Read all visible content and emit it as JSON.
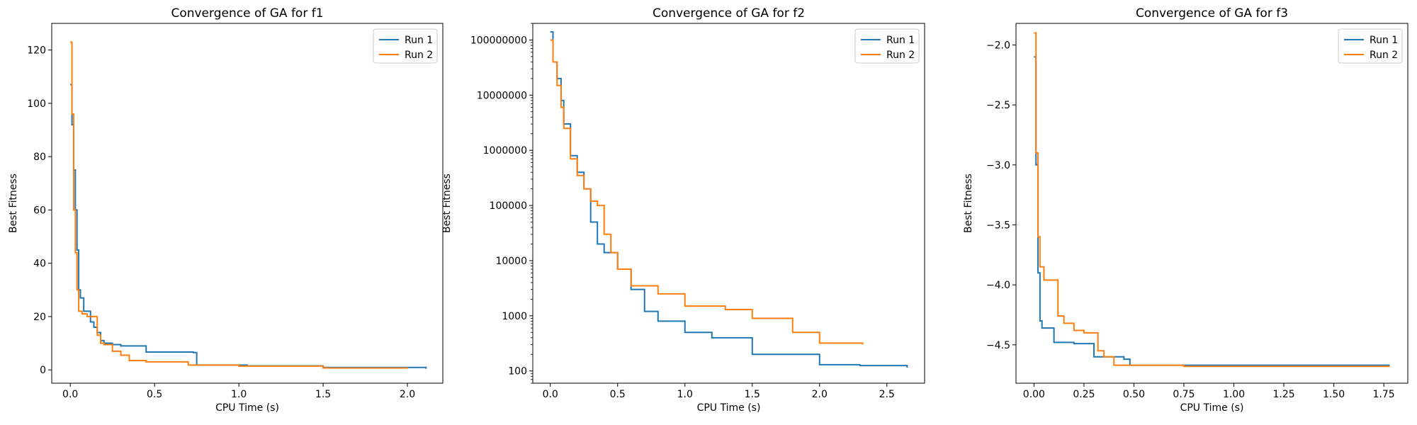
{
  "chart_data": [
    {
      "type": "line",
      "title": "Convergence of GA for f1",
      "xlabel": "CPU Time (s)",
      "ylabel": "Best Fitness",
      "xlim": [
        -0.11,
        2.21
      ],
      "ylim": [
        -5,
        130
      ],
      "yscale": "linear",
      "xticks": [
        0.0,
        0.5,
        1.0,
        1.5,
        2.0
      ],
      "xtick_labels": [
        "0.0",
        "0.5",
        "1.0",
        "1.5",
        "2.0"
      ],
      "yticks": [
        0,
        20,
        40,
        60,
        80,
        100,
        120
      ],
      "ytick_labels": [
        "0",
        "20",
        "40",
        "60",
        "80",
        "100",
        "120"
      ],
      "legend": {
        "loc": "upper right",
        "entries": [
          "Run 1",
          "Run 2"
        ]
      },
      "grid": false,
      "series": [
        {
          "name": "Run 1",
          "color": "#1f77b4",
          "x": [
            0.0,
            0.01,
            0.02,
            0.03,
            0.04,
            0.05,
            0.06,
            0.08,
            0.1,
            0.12,
            0.14,
            0.16,
            0.18,
            0.2,
            0.25,
            0.3,
            0.35,
            0.45,
            0.6,
            0.73,
            0.75,
            1.05,
            1.5,
            2.11
          ],
          "y": [
            107,
            92,
            75,
            60,
            45,
            30,
            27,
            22,
            22,
            18,
            16,
            14,
            11,
            10,
            9.5,
            9,
            9,
            6.7,
            6.7,
            6.5,
            1.8,
            1.5,
            0.9,
            0.4
          ]
        },
        {
          "name": "Run 2",
          "color": "#ff7f0e",
          "x": [
            0.0,
            0.01,
            0.02,
            0.03,
            0.04,
            0.05,
            0.07,
            0.1,
            0.14,
            0.16,
            0.18,
            0.2,
            0.25,
            0.3,
            0.35,
            0.45,
            0.7,
            1.0,
            1.5,
            2.0
          ],
          "y": [
            123,
            96,
            60,
            44,
            30,
            22,
            21,
            20,
            20,
            13,
            10,
            9.5,
            7,
            5.5,
            3.5,
            3,
            1.8,
            1.4,
            0.7,
            0.5
          ]
        }
      ]
    },
    {
      "type": "line",
      "title": "Convergence of GA for f2",
      "xlabel": "CPU Time (s)",
      "ylabel": "Best Fitness",
      "xlim": [
        -0.13,
        2.78
      ],
      "ylim": [
        60,
        200000000
      ],
      "yscale": "log",
      "xticks": [
        0.0,
        0.5,
        1.0,
        1.5,
        2.0,
        2.5
      ],
      "xtick_labels": [
        "0.0",
        "0.5",
        "1.0",
        "1.5",
        "2.0",
        "2.5"
      ],
      "yticks": [
        100,
        1000,
        10000,
        100000,
        1000000,
        10000000,
        100000000
      ],
      "ytick_labels": [
        "100",
        "1000",
        "10000",
        "100000",
        "1000000",
        "10000000",
        "100000000"
      ],
      "legend": {
        "loc": "upper right",
        "entries": [
          "Run 1",
          "Run 2"
        ]
      },
      "grid": false,
      "series": [
        {
          "name": "Run 1",
          "color": "#1f77b4",
          "x": [
            0.0,
            0.02,
            0.05,
            0.08,
            0.1,
            0.15,
            0.2,
            0.25,
            0.3,
            0.35,
            0.4,
            0.5,
            0.6,
            0.7,
            0.8,
            1.0,
            1.2,
            1.5,
            2.0,
            2.3,
            2.65
          ],
          "y": [
            140000000,
            40000000,
            20000000,
            8000000,
            3000000,
            800000,
            400000,
            200000,
            50000,
            20000,
            14000,
            7000,
            3000,
            1200,
            800,
            500,
            400,
            200,
            130,
            125,
            115
          ]
        },
        {
          "name": "Run 2",
          "color": "#ff7f0e",
          "x": [
            0.0,
            0.02,
            0.05,
            0.08,
            0.1,
            0.15,
            0.2,
            0.25,
            0.3,
            0.35,
            0.4,
            0.45,
            0.5,
            0.6,
            0.8,
            1.0,
            1.3,
            1.5,
            1.8,
            2.0,
            2.32
          ],
          "y": [
            100000000,
            40000000,
            15000000,
            6000000,
            2500000,
            700000,
            350000,
            200000,
            120000,
            100000,
            30000,
            14000,
            7000,
            3500,
            2500,
            1500,
            1300,
            900,
            500,
            320,
            300
          ]
        }
      ]
    },
    {
      "type": "line",
      "title": "Convergence of GA for f3",
      "xlabel": "CPU Time (s)",
      "ylabel": "Best Fitness",
      "xlim": [
        -0.09,
        1.87
      ],
      "ylim": [
        -4.82,
        -1.82
      ],
      "yscale": "linear",
      "xticks": [
        0.0,
        0.25,
        0.5,
        0.75,
        1.0,
        1.25,
        1.5,
        1.75
      ],
      "xtick_labels": [
        "0.00",
        "0.25",
        "0.50",
        "0.75",
        "1.00",
        "1.25",
        "1.50",
        "1.75"
      ],
      "yticks": [
        -4.5,
        -4.0,
        -3.5,
        -3.0,
        -2.5,
        -2.0
      ],
      "ytick_labels": [
        "−4.5",
        "−4.0",
        "−3.5",
        "−3.0",
        "−2.5",
        "−2.0"
      ],
      "legend": {
        "loc": "upper right",
        "entries": [
          "Run 1",
          "Run 2"
        ]
      },
      "grid": false,
      "series": [
        {
          "name": "Run 1",
          "color": "#1f77b4",
          "x": [
            0.0,
            0.01,
            0.02,
            0.03,
            0.04,
            0.1,
            0.2,
            0.3,
            0.45,
            0.48,
            0.8,
            1.78
          ],
          "y": [
            -2.1,
            -3.0,
            -3.9,
            -4.3,
            -4.36,
            -4.48,
            -4.49,
            -4.6,
            -4.62,
            -4.67,
            -4.67,
            -4.67
          ]
        },
        {
          "name": "Run 2",
          "color": "#ff7f0e",
          "x": [
            0.0,
            0.01,
            0.02,
            0.03,
            0.05,
            0.1,
            0.12,
            0.15,
            0.2,
            0.25,
            0.3,
            0.32,
            0.35,
            0.4,
            0.75,
            1.78
          ],
          "y": [
            -1.9,
            -2.9,
            -3.6,
            -3.85,
            -3.96,
            -3.96,
            -4.26,
            -4.32,
            -4.38,
            -4.4,
            -4.4,
            -4.55,
            -4.6,
            -4.67,
            -4.68,
            -4.68
          ]
        }
      ]
    }
  ]
}
